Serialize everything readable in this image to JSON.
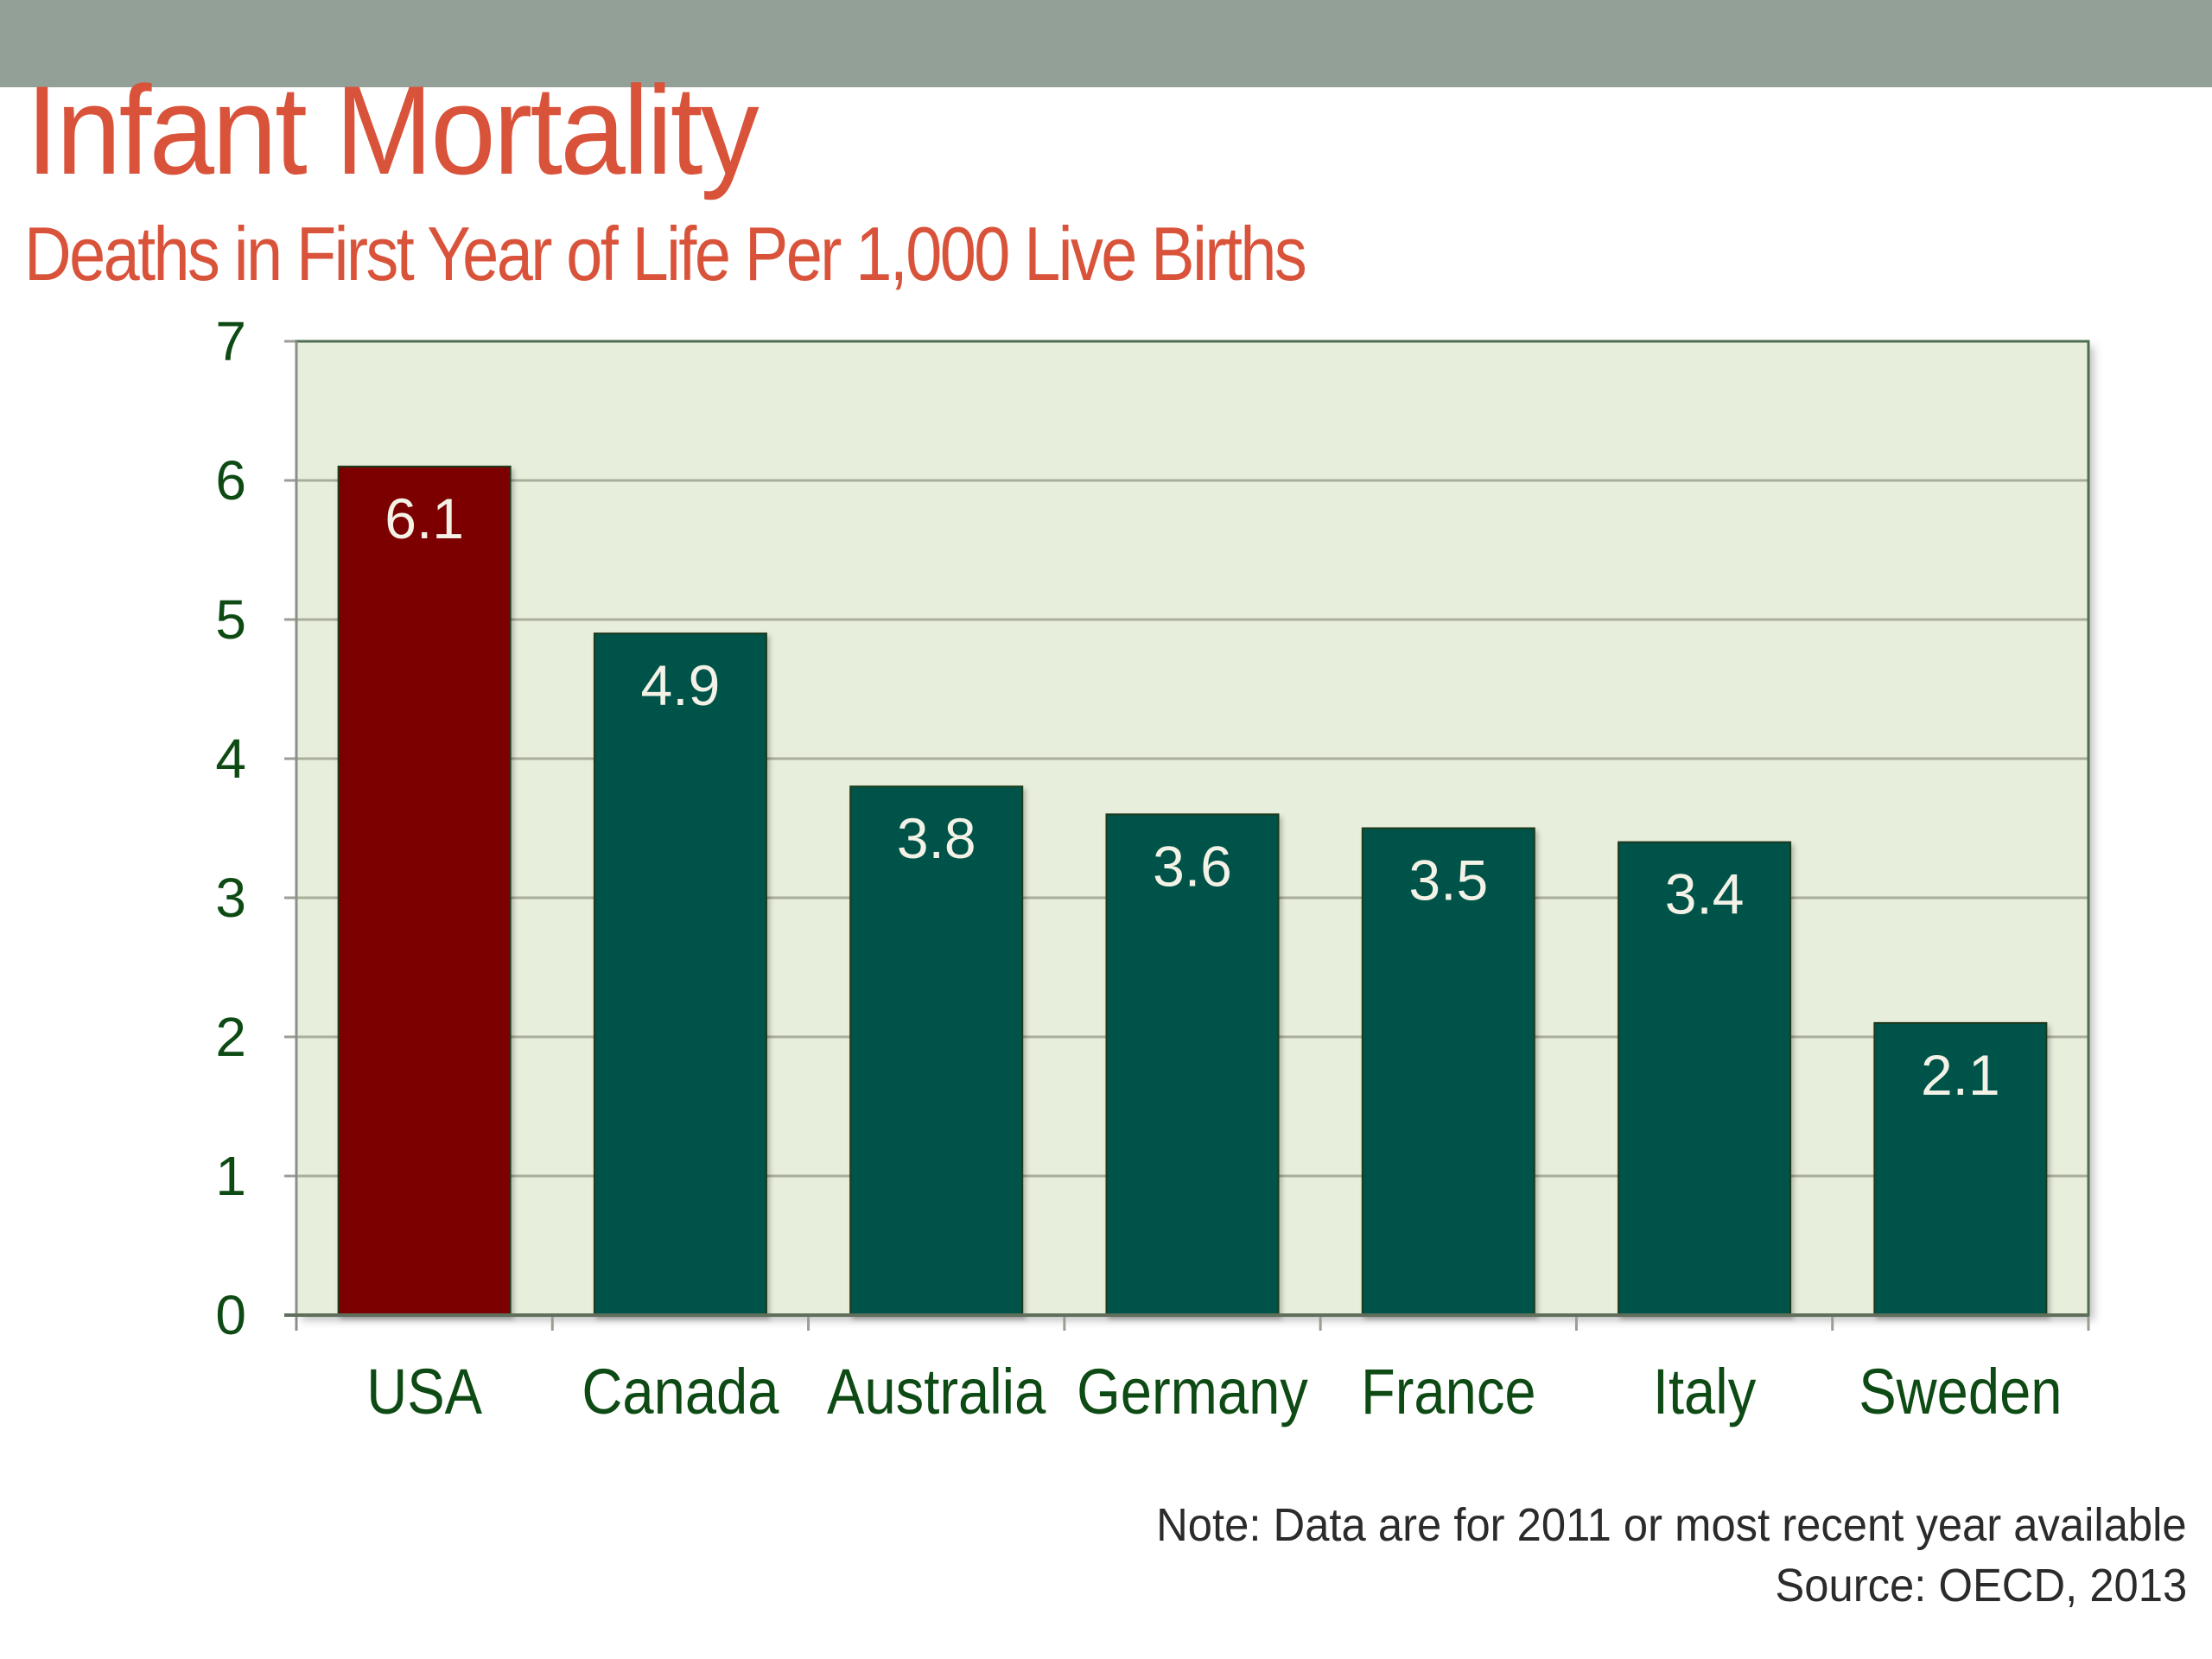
{
  "header": {
    "title": "Infant Mortality",
    "subtitle": "Deaths in First Year of Life Per 1,000 Live Births"
  },
  "footer": {
    "note": "Note: Data are for 2011 or most recent year available",
    "source": "Source: OECD, 2013"
  },
  "colors": {
    "title": "#d9533b",
    "header_bar": "#93a098",
    "plot_background": "#e8eedc",
    "plot_border": "#4f6e4f",
    "gridline": "#a9ad9d",
    "highlight_bar": "#7d0000",
    "default_bar": "#01524a",
    "bar_label": "#f4f2e6",
    "axis_text": "#0d4a14"
  },
  "chart_data": {
    "type": "bar",
    "title": "Infant Mortality",
    "subtitle": "Deaths in First Year of Life Per 1,000 Live Births",
    "xlabel": "",
    "ylabel": "",
    "categories": [
      "USA",
      "Canada",
      "Australia",
      "Germany",
      "France",
      "Italy",
      "Sweden"
    ],
    "values": [
      6.1,
      4.9,
      3.8,
      3.6,
      3.5,
      3.4,
      2.1
    ],
    "value_labels": [
      "6.1",
      "4.9",
      "3.8",
      "3.6",
      "3.5",
      "3.4",
      "2.1"
    ],
    "highlight": [
      "USA"
    ],
    "ylim": [
      0,
      7
    ],
    "yticks": [
      0,
      1,
      2,
      3,
      4,
      5,
      6,
      7
    ],
    "grid": true,
    "legend": "none"
  }
}
